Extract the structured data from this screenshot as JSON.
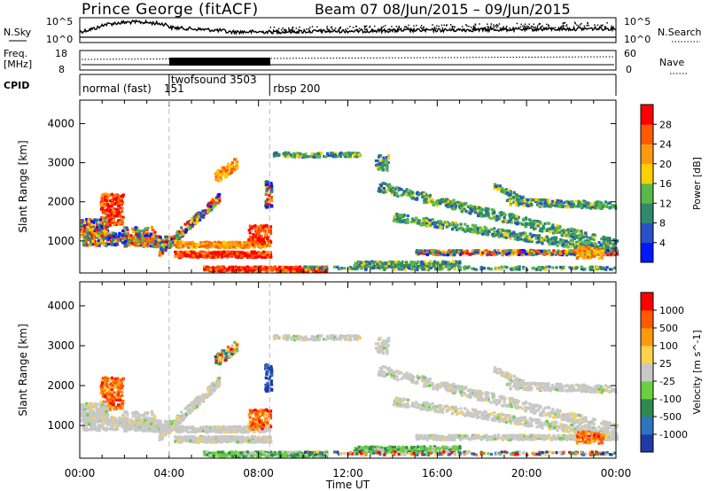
{
  "header": {
    "station": "Prince George (fitACF)",
    "beam_time": "Beam 07  08/Jun/2015 – 09/Jun/2015"
  },
  "strip_labels": {
    "nsky": "N.Sky",
    "nsearch": "N.Search",
    "freq_line1": "Freq.",
    "freq_line2": "[MHz]",
    "nave": "Nave",
    "cpid": "CPID",
    "nsky_top": "10^5",
    "nsky_bottom": "10^0",
    "nsearch_top": "10^5",
    "nsearch_bottom": "10^0",
    "freq_top": "18",
    "freq_bottom": "8",
    "nave_top": "60",
    "nave_bottom": "0"
  },
  "cpid_modes": [
    {
      "label": "normal (fast)",
      "value": "151",
      "start": 0,
      "end": 4
    },
    {
      "label": "twofsound",
      "value": "3503",
      "start": 4,
      "end": 8.5
    },
    {
      "label": "rbsp",
      "value": "200",
      "start": 8.5,
      "end": 24
    }
  ],
  "chart_data": [
    {
      "type": "heatmap",
      "ylabel": "Slant Range [km]",
      "x_ticks": [
        "00:00",
        "04:00",
        "08:00",
        "12:00",
        "16:00",
        "20:00",
        "00:00"
      ],
      "x_range_hours": [
        0,
        24
      ],
      "y_ticks": [
        1000,
        2000,
        3000,
        4000
      ],
      "ylim": [
        180,
        4600
      ],
      "colorbar": {
        "label": "Power [dB]",
        "ticks": [
          4,
          8,
          12,
          16,
          20,
          24,
          28
        ],
        "colors": [
          "#0018ff",
          "#2a50c8",
          "#2e8a6a",
          "#58b848",
          "#ffd000",
          "#ff9a10",
          "#ff5a00",
          "#ff0000"
        ]
      }
    },
    {
      "type": "heatmap",
      "ylabel": "Slant Range [km]",
      "xlabel": "Time UT",
      "x_ticks": [
        "00:00",
        "04:00",
        "08:00",
        "12:00",
        "16:00",
        "20:00",
        "00:00"
      ],
      "x_range_hours": [
        0,
        24
      ],
      "y_ticks": [
        1000,
        2000,
        3000,
        4000
      ],
      "ylim": [
        180,
        4600
      ],
      "colorbar": {
        "label": "Velocity [m s^-1]",
        "ticks": [
          "1000",
          "500",
          "100",
          "25",
          "-25",
          "-100",
          "-500",
          "-1000"
        ],
        "colors": [
          "#1f3aa8",
          "#2f74c0",
          "#2e8a50",
          "#6ad040",
          "#c8c8c8",
          "#ffd24a",
          "#ff9a10",
          "#ff5a00",
          "#ff0000"
        ]
      }
    }
  ]
}
